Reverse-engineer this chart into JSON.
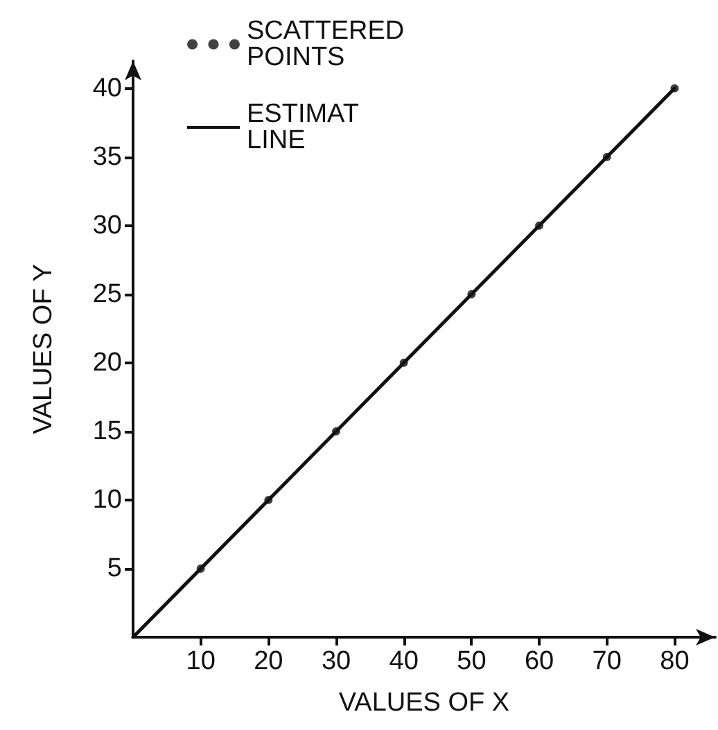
{
  "chart_data": {
    "type": "scatter",
    "xlabel": "VALUES OF X",
    "ylabel": "VALUES OF Y",
    "xlim": [
      0,
      86
    ],
    "ylim": [
      0,
      42
    ],
    "xticks": [
      10,
      20,
      30,
      40,
      50,
      60,
      70,
      80
    ],
    "yticks": [
      5,
      10,
      15,
      20,
      25,
      30,
      35,
      40
    ],
    "series": [
      {
        "name": "SCATTERED POINTS",
        "marker": "circle",
        "color": "#111111",
        "x": [
          10,
          20,
          30,
          40,
          50,
          60,
          70,
          80
        ],
        "values": [
          5,
          10,
          15,
          20,
          25,
          30,
          35,
          40
        ]
      },
      {
        "name": "ESTIMAT LINE",
        "type": "line",
        "marker": "none",
        "line_style": "solid",
        "color": "#111111",
        "x": [
          0,
          80
        ],
        "values": [
          0,
          40
        ]
      }
    ],
    "grid": false,
    "legend": "top left"
  }
}
